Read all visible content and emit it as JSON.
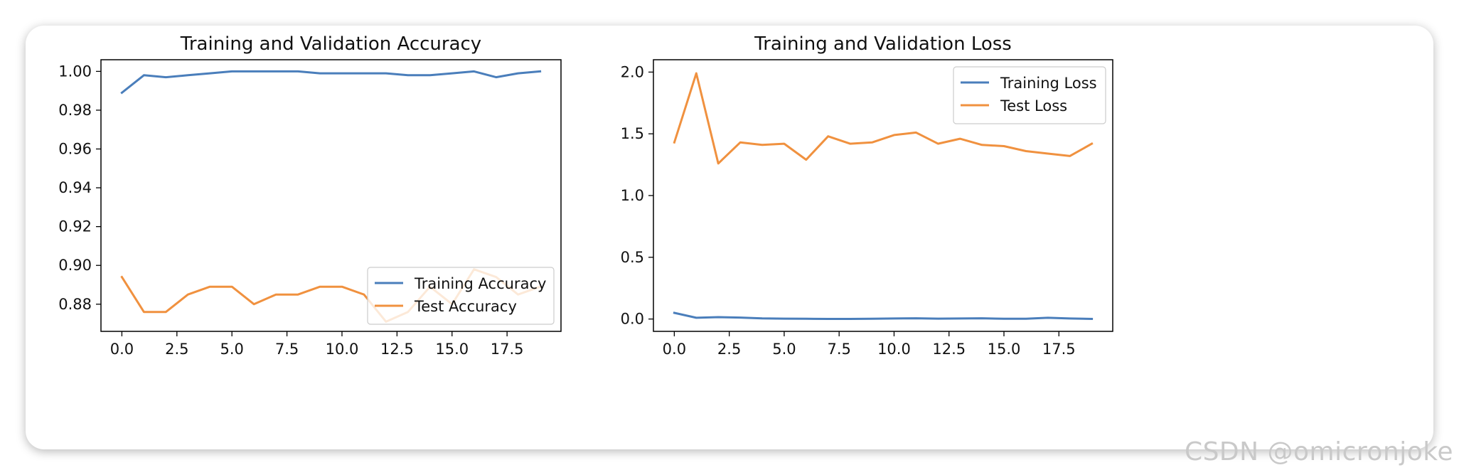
{
  "chart_data": [
    {
      "type": "line",
      "title": "Training and Validation Accuracy",
      "xlabel": "",
      "ylabel": "",
      "xlim": [
        -0.95,
        19.95
      ],
      "ylim": [
        0.866,
        1.006
      ],
      "xticks": [
        "0.0",
        "2.5",
        "5.0",
        "7.5",
        "10.0",
        "12.5",
        "15.0",
        "17.5"
      ],
      "yticks": [
        "0.88",
        "0.90",
        "0.92",
        "0.94",
        "0.96",
        "0.98",
        "1.00"
      ],
      "grid": false,
      "legend_position": "lower-right",
      "x": [
        0,
        1,
        2,
        3,
        4,
        5,
        6,
        7,
        8,
        9,
        10,
        11,
        12,
        13,
        14,
        15,
        16,
        17,
        18,
        19
      ],
      "series": [
        {
          "name": "Training Accuracy",
          "color": "#4a7ebb",
          "values": [
            0.989,
            0.998,
            0.997,
            0.998,
            0.999,
            1.0,
            1.0,
            1.0,
            1.0,
            0.999,
            0.999,
            0.999,
            0.999,
            0.998,
            0.998,
            0.999,
            1.0,
            0.997,
            0.999,
            1.0
          ]
        },
        {
          "name": "Test Accuracy",
          "color": "#f0913f",
          "values": [
            0.894,
            0.876,
            0.876,
            0.885,
            0.889,
            0.889,
            0.88,
            0.885,
            0.885,
            0.889,
            0.889,
            0.885,
            0.871,
            0.876,
            0.889,
            0.88,
            0.898,
            0.894,
            0.885,
            0.889
          ]
        }
      ]
    },
    {
      "type": "line",
      "title": "Training and Validation Loss",
      "xlabel": "",
      "ylabel": "",
      "xlim": [
        -0.95,
        19.95
      ],
      "ylim": [
        -0.1,
        2.1
      ],
      "xticks": [
        "0.0",
        "2.5",
        "5.0",
        "7.5",
        "10.0",
        "12.5",
        "15.0",
        "17.5"
      ],
      "yticks": [
        "0.0",
        "0.5",
        "1.0",
        "1.5",
        "2.0"
      ],
      "grid": false,
      "legend_position": "upper-right",
      "x": [
        0,
        1,
        2,
        3,
        4,
        5,
        6,
        7,
        8,
        9,
        10,
        11,
        12,
        13,
        14,
        15,
        16,
        17,
        18,
        19
      ],
      "series": [
        {
          "name": "Training Loss",
          "color": "#4a7ebb",
          "values": [
            0.05,
            0.01,
            0.015,
            0.012,
            0.005,
            0.003,
            0.002,
            0.001,
            0.001,
            0.002,
            0.004,
            0.006,
            0.003,
            0.004,
            0.006,
            0.002,
            0.002,
            0.01,
            0.004,
            0.001
          ]
        },
        {
          "name": "Test Loss",
          "color": "#f0913f",
          "values": [
            1.43,
            1.99,
            1.26,
            1.43,
            1.41,
            1.42,
            1.29,
            1.48,
            1.42,
            1.43,
            1.49,
            1.51,
            1.42,
            1.46,
            1.41,
            1.4,
            1.36,
            1.34,
            1.32,
            1.42
          ]
        }
      ]
    }
  ],
  "watermark": "CSDN @omicronjoke"
}
